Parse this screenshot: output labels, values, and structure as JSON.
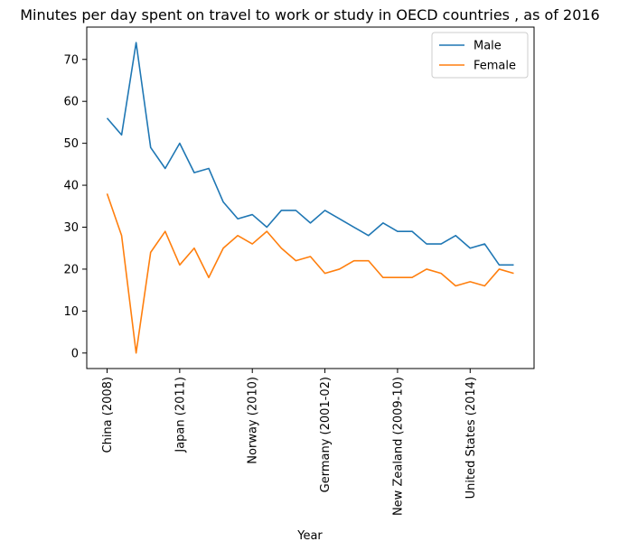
{
  "chart_data": {
    "type": "line",
    "title": "Minutes per day spent on travel to work or study in OECD countries , as of 2016",
    "xlabel": "Year",
    "ylabel": "",
    "x_tick_labels": [
      "China (2008)",
      "Japan (2011)",
      "Norway (2010)",
      "Germany (2001-02)",
      "New Zealand (2009-10)",
      "United States (2014)"
    ],
    "x_tick_indices": [
      0,
      5,
      10,
      15,
      20,
      25
    ],
    "y_ticks": [
      0,
      10,
      20,
      30,
      40,
      50,
      60,
      70
    ],
    "ylim": [
      -3.7,
      77.7
    ],
    "xlim": [
      -1.4,
      29.4
    ],
    "grid": false,
    "legend_position": "top-right",
    "series": [
      {
        "name": "Male",
        "color": "#1f77b4",
        "values": [
          56,
          52,
          74,
          49,
          44,
          50,
          43,
          44,
          36,
          32,
          33,
          30,
          34,
          34,
          31,
          34,
          32,
          30,
          28,
          31,
          29,
          29,
          26,
          26,
          28,
          25,
          26,
          21,
          21
        ]
      },
      {
        "name": "Female",
        "color": "#ff7f0e",
        "values": [
          38,
          28,
          0,
          24,
          29,
          21,
          25,
          18,
          25,
          28,
          26,
          29,
          25,
          22,
          23,
          19,
          20,
          22,
          22,
          18,
          18,
          18,
          20,
          19,
          16,
          17,
          16,
          20,
          19
        ]
      }
    ]
  }
}
